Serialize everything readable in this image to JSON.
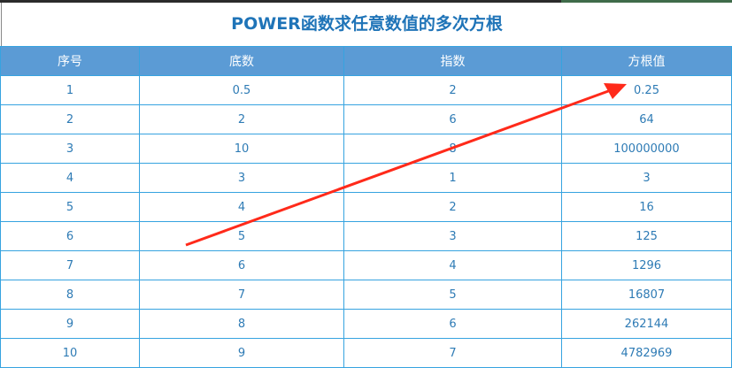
{
  "title": "POWER函数求任意数值的多次方根",
  "headers": [
    "序号",
    "底数",
    "指数",
    "方根值"
  ],
  "rows": [
    [
      "1",
      "0.5",
      "2",
      "0.25"
    ],
    [
      "2",
      "2",
      "6",
      "64"
    ],
    [
      "3",
      "10",
      "8",
      "100000000"
    ],
    [
      "4",
      "3",
      "1",
      "3"
    ],
    [
      "5",
      "4",
      "2",
      "16"
    ],
    [
      "6",
      "5",
      "3",
      "125"
    ],
    [
      "7",
      "6",
      "4",
      "1296"
    ],
    [
      "8",
      "7",
      "5",
      "16807"
    ],
    [
      "9",
      "8",
      "6",
      "262144"
    ],
    [
      "10",
      "9",
      "7",
      "4782969"
    ]
  ],
  "annotation_color": "#ff2a1a"
}
